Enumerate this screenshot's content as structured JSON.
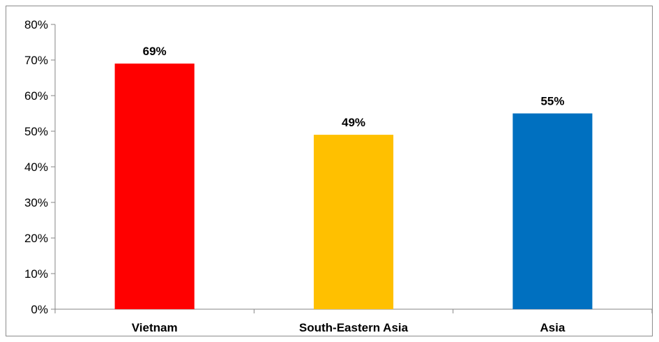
{
  "chart_data": {
    "type": "bar",
    "title": "",
    "xlabel": "",
    "ylabel": "",
    "categories": [
      "Vietnam",
      "South-Eastern Asia",
      "Asia"
    ],
    "values": [
      69,
      49,
      55
    ],
    "data_labels": [
      "69%",
      "49%",
      "55%"
    ],
    "colors": [
      "#ff0000",
      "#ffc000",
      "#0070c0"
    ],
    "ylim": [
      0,
      80
    ],
    "y_ticks": [
      0,
      10,
      20,
      30,
      40,
      50,
      60,
      70,
      80
    ],
    "y_tick_labels": [
      "0%",
      "10%",
      "20%",
      "30%",
      "40%",
      "50%",
      "60%",
      "70%",
      "80%"
    ],
    "grid": false,
    "legend": "none"
  }
}
